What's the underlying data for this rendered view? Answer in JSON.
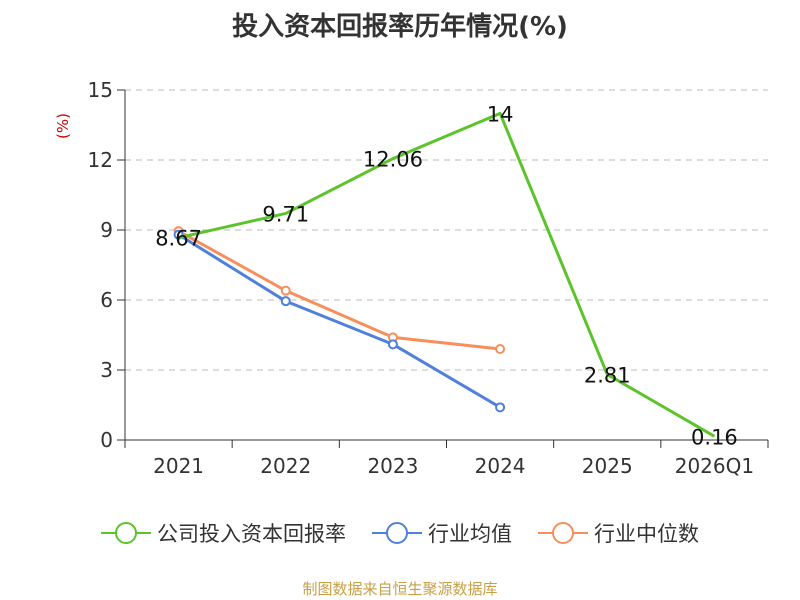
{
  "colors": {
    "company": "#5cc32a",
    "industry_avg": "#4f80dc",
    "industry_median": "#f78f5c",
    "axis": "#333333",
    "grid": "#bbbbbb",
    "unit": "#cc0000",
    "source": "#c8a046"
  },
  "chart_data": {
    "type": "line",
    "title": "投入资本回报率历年情况(%)",
    "ylabel": "(%)",
    "xlabel": "",
    "categories": [
      "2021",
      "2022",
      "2023",
      "2024",
      "2025",
      "2026Q1"
    ],
    "ylim": [
      0,
      15
    ],
    "yticks": [
      0,
      3,
      6,
      9,
      12,
      15
    ],
    "grid": true,
    "legend_position": "bottom",
    "series": [
      {
        "name": "公司投入资本回报率",
        "values": [
          8.67,
          9.71,
          12.06,
          14,
          2.81,
          0.16
        ],
        "labels": [
          "8.67",
          "9.71",
          "12.06",
          "14",
          "2.81",
          "0.16"
        ],
        "color_key": "company"
      },
      {
        "name": "行业均值",
        "values": [
          8.8,
          5.95,
          4.1,
          1.4,
          null,
          null
        ],
        "color_key": "industry_avg"
      },
      {
        "name": "行业中位数",
        "values": [
          8.95,
          6.4,
          4.4,
          3.9,
          null,
          null
        ],
        "color_key": "industry_median"
      }
    ]
  },
  "source_note": "制图数据来自恒生聚源数据库"
}
